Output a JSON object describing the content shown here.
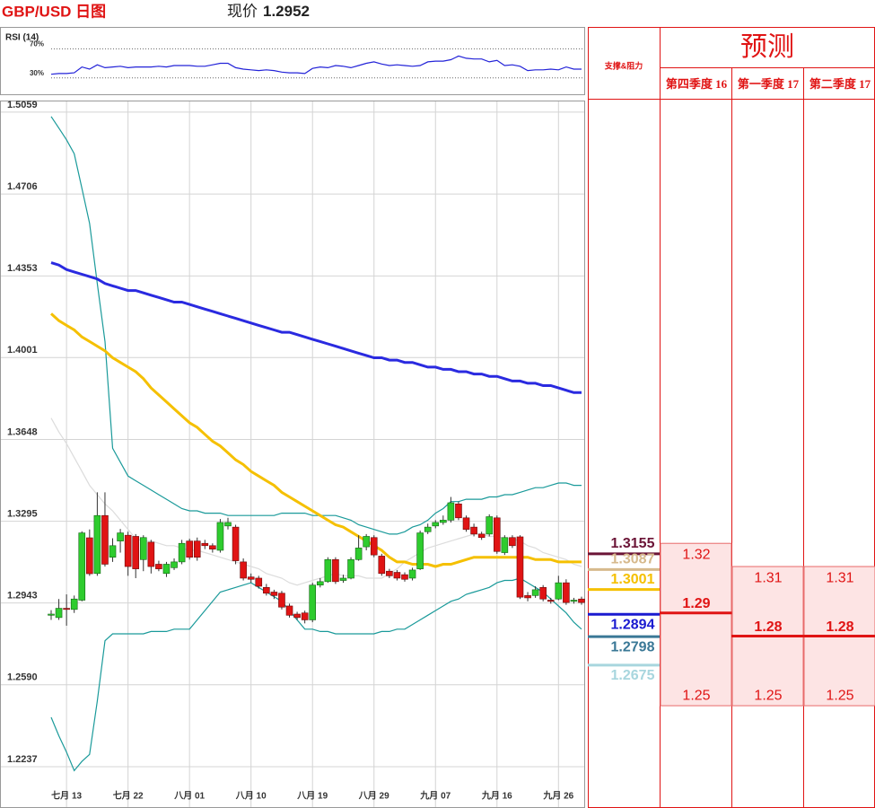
{
  "title": "GBP/USD 日图",
  "price_label": "现价",
  "price": 1.2952,
  "chart_data": [
    {
      "type": "line",
      "title": "RSI (14)",
      "ylim": [
        7.5,
        98.75
      ],
      "yticks": [
        {
          "value": 30,
          "label": "30%"
        },
        {
          "value": 70,
          "label": "70%"
        }
      ],
      "series": [
        {
          "color": "#2323d8",
          "values": [
            35,
            36,
            36,
            37,
            45,
            42,
            48,
            44,
            45,
            46,
            44,
            45,
            45,
            45,
            46,
            45,
            47,
            47,
            47,
            46,
            46,
            48,
            50,
            50,
            44,
            42,
            41,
            40,
            41,
            40,
            38,
            37,
            37,
            36,
            43,
            45,
            44,
            47,
            46,
            44,
            47,
            50,
            52,
            49,
            47,
            48,
            47,
            46,
            47,
            52,
            53,
            53,
            55,
            60,
            57,
            56,
            56,
            52,
            54,
            47,
            48,
            46,
            40,
            41,
            41,
            42,
            41,
            45,
            42,
            42
          ]
        }
      ]
    },
    {
      "type": "candlestick",
      "ylim": [
        1.2059,
        1.5109
      ],
      "yticks": [
        1.2237,
        {
          "value": 1.259,
          "label": "1.2590"
        },
        1.2943,
        1.3295,
        1.3648,
        1.4001,
        1.4353,
        1.4706,
        1.5059
      ],
      "grid": true,
      "up_color": "#2ecc2e",
      "down_color": "#e01414",
      "categories": [
        null,
        null,
        "七月 13",
        null,
        null,
        null,
        null,
        null,
        null,
        null,
        "七月 22",
        null,
        null,
        null,
        null,
        null,
        null,
        null,
        "八月 01",
        null,
        null,
        null,
        null,
        null,
        null,
        null,
        "八月 10",
        null,
        null,
        null,
        null,
        null,
        null,
        null,
        "八月 19",
        null,
        null,
        null,
        null,
        null,
        null,
        null,
        "八月 29",
        null,
        null,
        null,
        null,
        null,
        null,
        null,
        "九月 07",
        null,
        null,
        null,
        null,
        null,
        null,
        null,
        "九月 16",
        null,
        null,
        null,
        null,
        null,
        null,
        null,
        "九月 26",
        null,
        null,
        null
      ],
      "open": [
        1.289,
        1.288,
        1.292,
        1.2915,
        1.2955,
        1.3224,
        1.307,
        1.332,
        1.314,
        1.321,
        1.3235,
        1.323,
        1.313,
        1.3205,
        1.311,
        1.307,
        1.3095,
        1.312,
        1.321,
        1.321,
        1.32,
        1.319,
        1.317,
        1.3275,
        1.327,
        1.312,
        1.3055,
        1.305,
        1.301,
        1.299,
        1.2985,
        1.293,
        1.2895,
        1.29,
        1.287,
        1.302,
        1.3035,
        1.313,
        1.304,
        1.305,
        1.313,
        1.3185,
        1.3225,
        1.3145,
        1.308,
        1.3075,
        1.3065,
        1.305,
        1.309,
        1.325,
        1.3275,
        1.329,
        1.33,
        1.337,
        1.331,
        1.327,
        1.324,
        1.324,
        1.331,
        1.316,
        1.3225,
        1.3228,
        1.2975,
        1.2975,
        1.301,
        1.2955,
        1.296,
        1.303,
        1.295,
        1.296
      ],
      "close": [
        1.2895,
        1.292,
        1.2915,
        1.296,
        1.3245,
        1.3069,
        1.332,
        1.311,
        1.319,
        1.3245,
        1.31,
        1.309,
        1.3225,
        1.31,
        1.309,
        1.311,
        1.312,
        1.32,
        1.314,
        1.314,
        1.319,
        1.3175,
        1.329,
        1.329,
        1.3125,
        1.305,
        1.3045,
        1.3015,
        1.2985,
        1.2975,
        1.2925,
        1.289,
        1.288,
        1.287,
        1.302,
        1.3035,
        1.313,
        1.3035,
        1.305,
        1.313,
        1.318,
        1.323,
        1.315,
        1.307,
        1.306,
        1.305,
        1.3045,
        1.3085,
        1.3245,
        1.327,
        1.329,
        1.33,
        1.3375,
        1.331,
        1.326,
        1.324,
        1.3225,
        1.3315,
        1.3165,
        1.3225,
        1.319,
        1.2968,
        1.2965,
        1.3,
        1.296,
        1.295,
        1.303,
        1.2945,
        1.2955,
        1.2945
      ],
      "high": [
        1.2912,
        1.296,
        1.298,
        1.2975,
        1.3252,
        1.326,
        1.342,
        1.342,
        1.3222,
        1.3262,
        1.325,
        1.324,
        1.3235,
        1.3215,
        1.3125,
        1.312,
        1.3135,
        1.3215,
        1.322,
        1.3225,
        1.3215,
        1.32,
        1.3305,
        1.331,
        1.328,
        1.3135,
        1.307,
        1.306,
        1.3025,
        1.3,
        1.2995,
        1.294,
        1.2905,
        1.291,
        1.303,
        1.305,
        1.314,
        1.314,
        1.3065,
        1.314,
        1.3235,
        1.324,
        1.3235,
        1.3155,
        1.309,
        1.3085,
        1.3075,
        1.3095,
        1.3255,
        1.3285,
        1.33,
        1.332,
        1.34,
        1.338,
        1.332,
        1.3285,
        1.325,
        1.3325,
        1.332,
        1.3235,
        1.3235,
        1.3235,
        1.299,
        1.3015,
        1.302,
        1.2965,
        1.306,
        1.3045,
        1.2965,
        1.297
      ],
      "low": [
        1.287,
        1.287,
        1.2845,
        1.29,
        1.295,
        1.306,
        1.306,
        1.31,
        1.312,
        1.316,
        1.306,
        1.305,
        1.308,
        1.307,
        1.308,
        1.3055,
        1.3085,
        1.311,
        1.313,
        1.3125,
        1.3175,
        1.316,
        1.316,
        1.326,
        1.311,
        1.304,
        1.303,
        1.3005,
        1.2975,
        1.296,
        1.2915,
        1.288,
        1.287,
        1.2855,
        1.286,
        1.301,
        1.303,
        1.3025,
        1.303,
        1.3045,
        1.3125,
        1.317,
        1.314,
        1.306,
        1.305,
        1.304,
        1.3035,
        1.304,
        1.3085,
        1.324,
        1.3265,
        1.328,
        1.329,
        1.33,
        1.325,
        1.323,
        1.3215,
        1.323,
        1.3155,
        1.315,
        1.318,
        1.296,
        1.295,
        1.2965,
        1.295,
        1.294,
        1.2955,
        1.2935,
        1.294,
        1.2935
      ],
      "lines": [
        {
          "color": "#1a9a9a",
          "values": [
            1.504,
            1.499,
            1.494,
            1.488,
            1.473,
            1.458,
            1.432,
            1.407,
            1.361,
            1.355,
            1.349,
            1.347,
            1.345,
            1.343,
            1.341,
            1.339,
            1.337,
            1.335,
            1.334,
            1.334,
            1.333,
            1.333,
            1.333,
            1.332,
            1.332,
            1.332,
            1.332,
            1.332,
            1.332,
            1.332,
            1.333,
            1.333,
            1.333,
            1.333,
            1.332,
            1.332,
            1.332,
            1.332,
            1.331,
            1.33,
            1.328,
            1.327,
            1.326,
            1.325,
            1.324,
            1.324,
            1.325,
            1.327,
            1.328,
            1.33,
            1.333,
            1.335,
            1.338,
            1.338,
            1.339,
            1.339,
            1.339,
            1.34,
            1.34,
            1.341,
            1.341,
            1.342,
            1.343,
            1.344,
            1.344,
            1.345,
            1.346,
            1.346,
            1.345,
            1.345
          ]
        },
        {
          "color": "#1a9a9a",
          "values": [
            1.245,
            1.237,
            1.23,
            1.222,
            1.226,
            1.229,
            1.252,
            1.278,
            1.281,
            1.281,
            1.281,
            1.281,
            1.281,
            1.282,
            1.282,
            1.282,
            1.283,
            1.283,
            1.283,
            1.287,
            1.291,
            1.295,
            1.299,
            1.3,
            1.301,
            1.302,
            1.303,
            1.301,
            1.299,
            1.297,
            1.295,
            1.291,
            1.287,
            1.283,
            1.283,
            1.282,
            1.282,
            1.281,
            1.281,
            1.281,
            1.281,
            1.281,
            1.281,
            1.282,
            1.282,
            1.283,
            1.283,
            1.285,
            1.287,
            1.289,
            1.291,
            1.293,
            1.295,
            1.296,
            1.298,
            1.299,
            1.3,
            1.301,
            1.303,
            1.304,
            1.304,
            1.305,
            1.303,
            1.301,
            1.299,
            1.296,
            1.293,
            1.29,
            1.286,
            1.283
          ]
        },
        {
          "color": "#dcdcdc",
          "values": [
            1.374,
            1.368,
            1.363,
            1.357,
            1.351,
            1.345,
            1.341,
            1.337,
            1.334,
            1.33,
            1.326,
            1.322,
            1.321,
            1.321,
            1.32,
            1.319,
            1.319,
            1.318,
            1.317,
            1.317,
            1.316,
            1.315,
            1.314,
            1.313,
            1.312,
            1.311,
            1.31,
            1.309,
            1.307,
            1.306,
            1.305,
            1.303,
            1.302,
            1.303,
            1.304,
            1.305,
            1.306,
            1.307,
            1.306,
            1.306,
            1.306,
            1.305,
            1.305,
            1.305,
            1.307,
            1.309,
            1.312,
            1.314,
            1.316,
            1.318,
            1.319,
            1.32,
            1.321,
            1.322,
            1.323,
            1.324,
            1.324,
            1.323,
            1.323,
            1.322,
            1.322,
            1.321,
            1.319,
            1.318,
            1.316,
            1.315,
            1.314,
            1.313,
            1.311,
            1.31
          ]
        },
        {
          "color": "#2a2ae0",
          "values": [
            1.441,
            1.44,
            1.438,
            1.437,
            1.436,
            1.435,
            1.434,
            1.432,
            1.431,
            1.43,
            1.429,
            1.429,
            1.428,
            1.427,
            1.426,
            1.425,
            1.424,
            1.424,
            1.423,
            1.422,
            1.421,
            1.42,
            1.419,
            1.418,
            1.417,
            1.416,
            1.415,
            1.414,
            1.413,
            1.412,
            1.411,
            1.411,
            1.41,
            1.409,
            1.408,
            1.407,
            1.406,
            1.405,
            1.404,
            1.403,
            1.402,
            1.401,
            1.4,
            1.4,
            1.399,
            1.399,
            1.398,
            1.398,
            1.397,
            1.396,
            1.396,
            1.395,
            1.395,
            1.394,
            1.394,
            1.393,
            1.393,
            1.392,
            1.392,
            1.391,
            1.39,
            1.39,
            1.389,
            1.389,
            1.388,
            1.388,
            1.387,
            1.386,
            1.385,
            1.385
          ]
        },
        {
          "color": "#f5c000",
          "values": [
            1.419,
            1.416,
            1.414,
            1.412,
            1.409,
            1.407,
            1.405,
            1.403,
            1.4,
            1.398,
            1.396,
            1.394,
            1.391,
            1.387,
            1.384,
            1.381,
            1.378,
            1.375,
            1.372,
            1.37,
            1.367,
            1.364,
            1.362,
            1.359,
            1.356,
            1.354,
            1.351,
            1.349,
            1.347,
            1.345,
            1.342,
            1.34,
            1.338,
            1.336,
            1.334,
            1.332,
            1.33,
            1.328,
            1.327,
            1.325,
            1.323,
            1.321,
            1.319,
            1.317,
            1.314,
            1.312,
            1.312,
            1.311,
            1.311,
            1.311,
            1.31,
            1.311,
            1.311,
            1.312,
            1.313,
            1.314,
            1.314,
            1.314,
            1.314,
            1.314,
            1.314,
            1.314,
            1.314,
            1.313,
            1.313,
            1.313,
            1.312,
            1.312,
            1.312,
            1.312
          ]
        }
      ]
    }
  ],
  "table": {
    "sr_header": "支撑&阻力",
    "forecast_title": "预测",
    "levels": [
      {
        "value": 1.3155,
        "color": "#6b1436"
      },
      {
        "value": 1.3087,
        "color": "#d6b98c"
      },
      {
        "value": 1.3001,
        "color": "#f5c000"
      },
      {
        "value": 1.2894,
        "color": "#1a1ad0"
      },
      {
        "value": 1.2798,
        "color": "#3a7896"
      },
      {
        "value": 1.2675,
        "color": "#a8d6de"
      }
    ],
    "forecasts": [
      {
        "period": "第四季度 16",
        "high": 1.32,
        "mid": 1.29,
        "low": 1.25
      },
      {
        "period": "第一季度 17",
        "high": 1.31,
        "mid": 1.28,
        "low": 1.25
      },
      {
        "period": "第二季度 17",
        "high": 1.31,
        "mid": 1.28,
        "low": 1.25
      }
    ]
  }
}
